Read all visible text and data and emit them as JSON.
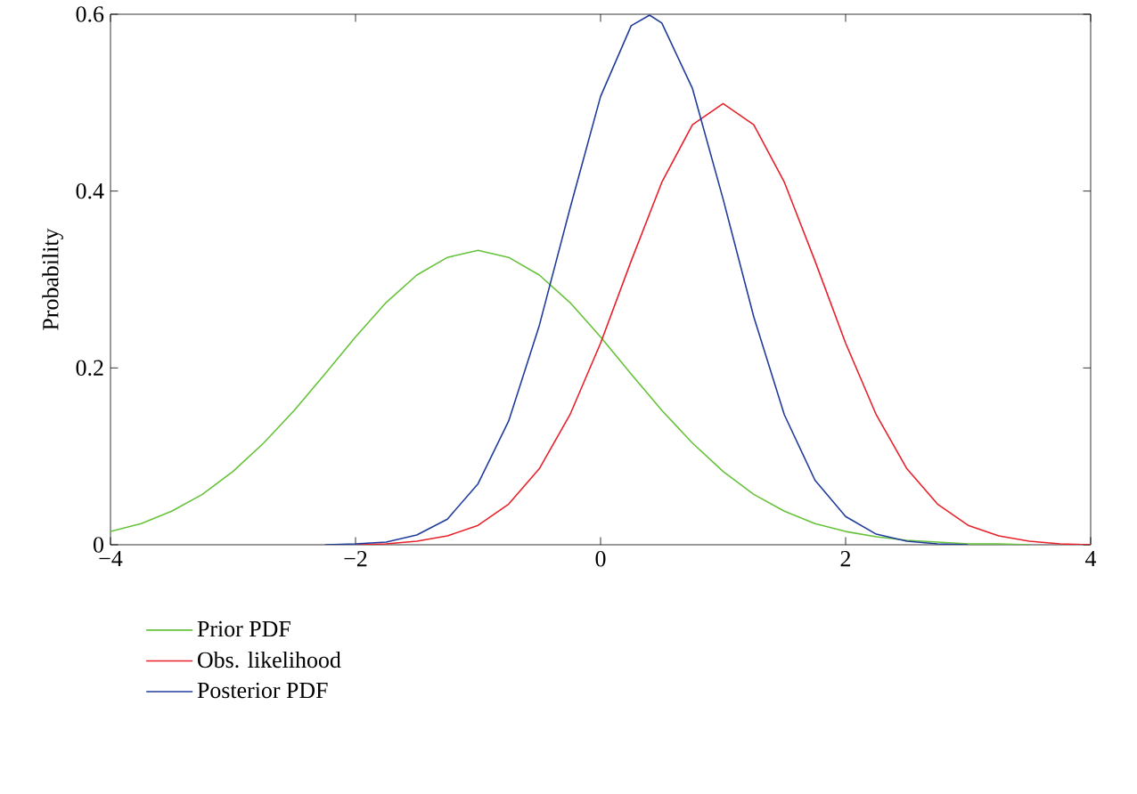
{
  "chart_data": {
    "type": "line",
    "ylabel": "Probability",
    "xlim": [
      -4,
      4
    ],
    "ylim": [
      0,
      0.6
    ],
    "xticks": [
      {
        "value": -4,
        "label": "−4"
      },
      {
        "value": -2,
        "label": "−2"
      },
      0,
      2,
      4
    ],
    "yticks": [
      0,
      0.2,
      0.4,
      0.6
    ],
    "grid": false,
    "legend": "bottom",
    "series": [
      {
        "name": "Prior PDF",
        "color": "#66c23a",
        "x": [
          -4,
          -3.75,
          -3.5,
          -3.25,
          -3,
          -2.75,
          -2.5,
          -2.25,
          -2,
          -1.75,
          -1.5,
          -1.25,
          -1,
          -0.75,
          -0.5,
          -0.25,
          0,
          0.25,
          0.5,
          0.75,
          1,
          1.25,
          1.5,
          1.75,
          2,
          2.25,
          2.5,
          2.75,
          3,
          3.25,
          3.5
        ],
        "values": [
          0.015,
          0.024,
          0.038,
          0.057,
          0.083,
          0.115,
          0.152,
          0.193,
          0.235,
          0.274,
          0.305,
          0.325,
          0.333,
          0.325,
          0.305,
          0.274,
          0.235,
          0.193,
          0.152,
          0.115,
          0.083,
          0.057,
          0.038,
          0.024,
          0.015,
          0.009,
          0.005,
          0.003,
          0.001,
          0.001,
          0
        ]
      },
      {
        "name": "Obs. likelihood",
        "color": "#e8202a",
        "x": [
          -2,
          -1.75,
          -1.5,
          -1.25,
          -1,
          -0.75,
          -0.5,
          -0.25,
          0,
          0.25,
          0.5,
          0.75,
          1,
          1.25,
          1.5,
          1.75,
          2,
          2.25,
          2.5,
          2.75,
          3,
          3.25,
          3.5,
          3.75,
          4
        ],
        "values": [
          0,
          0.001,
          0.004,
          0.01,
          0.022,
          0.046,
          0.086,
          0.147,
          0.228,
          0.321,
          0.41,
          0.475,
          0.499,
          0.475,
          0.41,
          0.321,
          0.228,
          0.147,
          0.086,
          0.046,
          0.022,
          0.01,
          0.004,
          0.001,
          0
        ]
      },
      {
        "name": "Posterior PDF",
        "color": "#1f3c9c",
        "x": [
          -2.25,
          -2,
          -1.75,
          -1.5,
          -1.25,
          -1,
          -0.75,
          -0.5,
          -0.25,
          0,
          0.25,
          0.4,
          0.5,
          0.75,
          1,
          1.25,
          1.5,
          1.75,
          2,
          2.25,
          2.5,
          2.75,
          3
        ],
        "values": [
          0,
          0.001,
          0.003,
          0.011,
          0.029,
          0.069,
          0.14,
          0.248,
          0.38,
          0.507,
          0.587,
          0.599,
          0.59,
          0.516,
          0.391,
          0.258,
          0.147,
          0.073,
          0.032,
          0.012,
          0.004,
          0.001,
          0
        ]
      }
    ]
  }
}
